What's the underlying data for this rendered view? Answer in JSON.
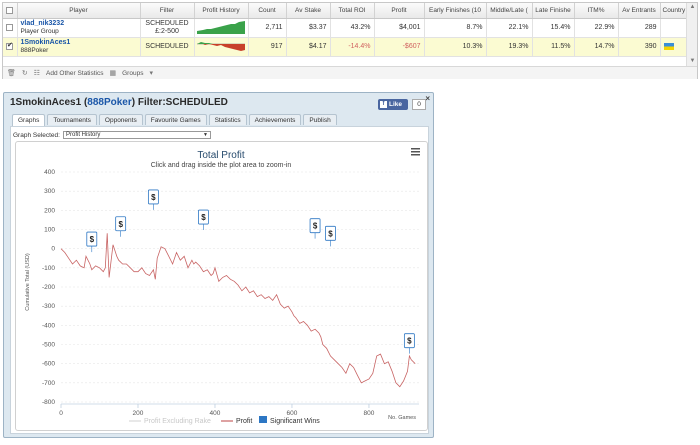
{
  "grid": {
    "columns": [
      "",
      "Player",
      "Filter",
      "Profit History",
      "Count",
      "Av Stake",
      "Total ROI",
      "Profit",
      "Early Finishes (10",
      "Middle/Late (",
      "Late Finishe",
      "ITM%",
      "Av Entrants",
      "Country"
    ],
    "rows": [
      {
        "checked": false,
        "player": "vlad_nik3232",
        "sub": "Player Group",
        "filter1": "SCHEDULED",
        "filter2": "£:2-500",
        "count": "2,711",
        "stake": "$3.37",
        "roi": "43.2%",
        "profit": "$4,001",
        "early": "8.7%",
        "middle": "22.1%",
        "late": "15.4%",
        "itm": "22.9%",
        "entrants": "289",
        "trend": "up"
      },
      {
        "checked": true,
        "player": "1SmokinAces1",
        "sub": "888Poker",
        "filter1": "SCHEDULED",
        "filter2": "",
        "count": "917",
        "stake": "$4.17",
        "roi": "-14.4%",
        "profit": "-$607",
        "early": "10.3%",
        "middle": "19.3%",
        "late": "11.5%",
        "itm": "14.7%",
        "entrants": "390",
        "trend": "down"
      }
    ],
    "footer": {
      "add_label": "Add Other Statistics",
      "groups_label": "Groups"
    }
  },
  "window": {
    "title_player": "1SmokinAces1",
    "title_site": "888Poker",
    "title_filter": "Filter:SCHEDULED",
    "like_label": "Like",
    "like_count": "0",
    "close": "×",
    "tabs": [
      "Graphs",
      "Tournaments",
      "Opponents",
      "Favourite Games",
      "Statistics",
      "Achievements",
      "Publish"
    ],
    "graph_selected_label": "Graph Selected:",
    "graph_selected_value": "Profit History"
  },
  "chart_data": {
    "type": "line",
    "title": "Total Profit",
    "subtitle": "Click and drag inside the plot area to zoom-in",
    "xlabel": "No. Games",
    "ylabel": "Cumulative Total (USD)",
    "xlim": [
      0,
      930
    ],
    "ylim": [
      -800,
      400
    ],
    "xticks": [
      0,
      200,
      400,
      600,
      800
    ],
    "yticks": [
      400,
      300,
      200,
      100,
      0,
      -100,
      -200,
      -300,
      -400,
      -500,
      -600,
      -700,
      -800
    ],
    "grid": true,
    "legend": [
      "Profit Excluding Rake",
      "Profit",
      "Significant Wins"
    ],
    "legend_placement": "bottom",
    "colors": {
      "profit": "#c86464",
      "excl": "#d8d8d8",
      "wins": "#2d77c4"
    },
    "series": [
      {
        "name": "Profit",
        "x": [
          0,
          10,
          20,
          30,
          40,
          50,
          60,
          65,
          75,
          80,
          90,
          100,
          110,
          115,
          120,
          125,
          135,
          145,
          150,
          160,
          170,
          180,
          190,
          200,
          210,
          220,
          230,
          240,
          245,
          250,
          260,
          270,
          280,
          290,
          300,
          310,
          320,
          330,
          340,
          345,
          350,
          360,
          370,
          380,
          390,
          395,
          400,
          410,
          420,
          430,
          440,
          450,
          460,
          470,
          480,
          490,
          500,
          510,
          520,
          530,
          540,
          550,
          560,
          570,
          580,
          590,
          600,
          605,
          610,
          620,
          630,
          640,
          650,
          660,
          670,
          675,
          680,
          690,
          700,
          710,
          720,
          730,
          740,
          750,
          760,
          770,
          780,
          790,
          800,
          810,
          820,
          830,
          840,
          850,
          860,
          870,
          880,
          890,
          900,
          905,
          910,
          920
        ],
        "y": [
          0,
          -20,
          -50,
          -80,
          -60,
          -90,
          -100,
          -40,
          -80,
          -110,
          -90,
          -100,
          -120,
          -100,
          80,
          -150,
          20,
          -40,
          -60,
          -80,
          -80,
          -100,
          -120,
          -120,
          -100,
          -130,
          -140,
          -110,
          -160,
          -50,
          10,
          0,
          -40,
          -80,
          -20,
          -60,
          -40,
          -100,
          -60,
          -80,
          -70,
          -90,
          -120,
          -110,
          -140,
          -130,
          -100,
          -170,
          -150,
          -140,
          -160,
          -170,
          -190,
          -220,
          -200,
          -230,
          -220,
          -250,
          -240,
          -260,
          -250,
          -270,
          -240,
          -290,
          -310,
          -300,
          -330,
          -350,
          -360,
          -390,
          -380,
          -400,
          -430,
          -420,
          -440,
          -460,
          -500,
          -520,
          -560,
          -580,
          -600,
          -620,
          -650,
          -600,
          -620,
          -660,
          -700,
          -690,
          -680,
          -650,
          -560,
          -550,
          -600,
          -590,
          -640,
          -700,
          -720,
          -690,
          -640,
          -560,
          -580,
          -600
        ]
      }
    ],
    "significant_wins": [
      {
        "x": 80,
        "y": 50
      },
      {
        "x": 155,
        "y": 130
      },
      {
        "x": 240,
        "y": 270
      },
      {
        "x": 370,
        "y": 165
      },
      {
        "x": 660,
        "y": 120
      },
      {
        "x": 700,
        "y": 80
      },
      {
        "x": 905,
        "y": -480
      }
    ]
  }
}
